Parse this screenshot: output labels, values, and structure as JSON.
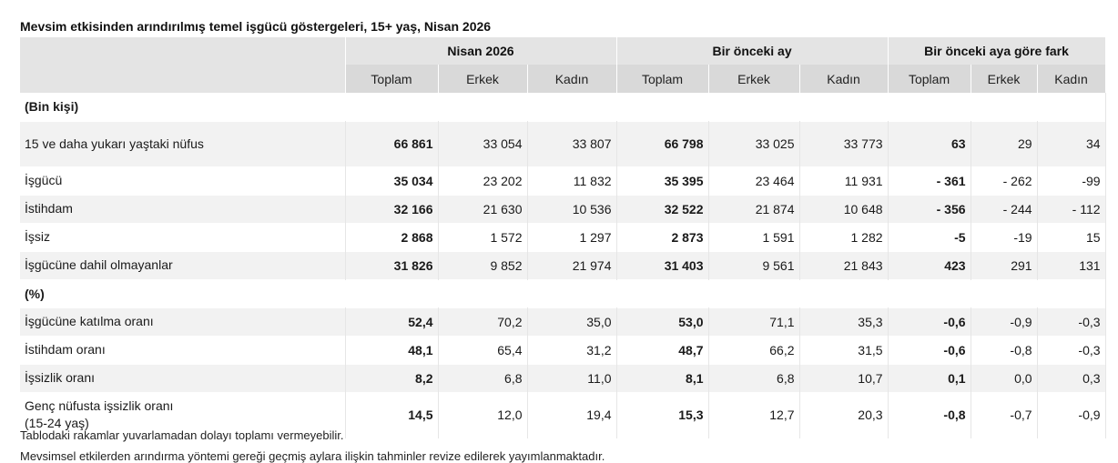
{
  "title": "Mevsim etkisinden arındırılmış temel işgücü göstergeleri, 15+ yaş, Nisan 2026",
  "groups": [
    "Nisan 2026",
    "Bir önceki ay",
    "Bir önceki aya göre fark"
  ],
  "subheaders": [
    "Toplam",
    "Erkek",
    "Kadın",
    "Toplam",
    "Erkek",
    "Kadın",
    "Toplam",
    "Erkek",
    "Kadın"
  ],
  "section1": "(Bin kişi)",
  "section2": "(%)",
  "rows1": [
    {
      "label": "15 ve daha yukarı yaştaki nüfus",
      "values": [
        "66 861",
        "33 054",
        "33 807",
        "66 798",
        "33 025",
        "33 773",
        "63",
        "29",
        "34"
      ]
    },
    {
      "label": "İşgücü",
      "values": [
        "35 034",
        "23 202",
        "11 832",
        "35 395",
        "23 464",
        "11 931",
        "- 361",
        "- 262",
        "-99"
      ]
    },
    {
      "label": "İstihdam",
      "values": [
        "32 166",
        "21 630",
        "10 536",
        "32 522",
        "21 874",
        "10 648",
        "- 356",
        "- 244",
        "- 112"
      ]
    },
    {
      "label": "İşsiz",
      "values": [
        "2 868",
        "1 572",
        "1 297",
        "2 873",
        "1 591",
        "1 282",
        "-5",
        "-19",
        "15"
      ]
    },
    {
      "label": "İşgücüne dahil olmayanlar",
      "values": [
        "31 826",
        "9 852",
        "21 974",
        "31 403",
        "9 561",
        "21 843",
        "423",
        "291",
        "131"
      ]
    }
  ],
  "rows2": [
    {
      "label": "İşgücüne katılma oranı",
      "values": [
        "52,4",
        "70,2",
        "35,0",
        "53,0",
        "71,1",
        "35,3",
        "-0,6",
        "-0,9",
        "-0,3"
      ]
    },
    {
      "label": "İstihdam oranı",
      "values": [
        "48,1",
        "65,4",
        "31,2",
        "48,7",
        "66,2",
        "31,5",
        "-0,6",
        "-0,8",
        "-0,3"
      ]
    },
    {
      "label": "İşsizlik oranı",
      "values": [
        "8,2",
        "6,8",
        "11,0",
        "8,1",
        "6,8",
        "10,7",
        "0,1",
        "0,0",
        "0,3"
      ]
    },
    {
      "label": "Genç nüfusta işsizlik oranı (15-24 yaş)",
      "values": [
        "14,5",
        "12,0",
        "19,4",
        "15,3",
        "12,7",
        "20,3",
        "-0,8",
        "-0,7",
        "-0,9"
      ]
    }
  ],
  "note1": "Tablodaki rakamlar yuvarlamadan dolayı toplamı vermeyebilir.",
  "note2": "Mevsimsel etkilerden arındırma yöntemi gereği geçmiş aylara ilişkin tahminler revize edilerek yayımlanmaktadır."
}
